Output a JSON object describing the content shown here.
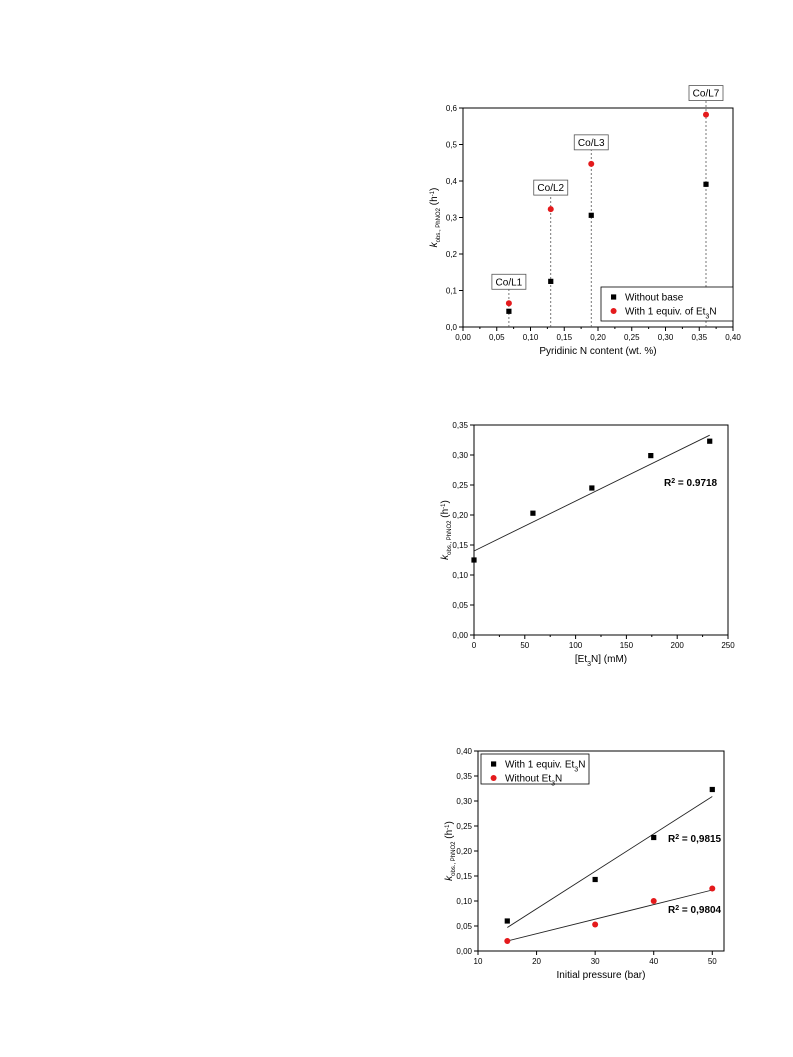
{
  "chart_data": [
    {
      "type": "scatter",
      "xlabel": "Pyridinic N content (wt. %)",
      "ylabel": {
        "k": "k",
        "subscript": "obs., PhNO2",
        "unit_pre": "(h",
        "unit_sup": "-1",
        "unit_post": ")"
      },
      "xlim": [
        0,
        0.4
      ],
      "ylim": [
        0,
        0.6
      ],
      "x_ticks": [
        "0,00",
        "0,05",
        "0,10",
        "0,15",
        "0,20",
        "0,25",
        "0,30",
        "0,35",
        "0,40"
      ],
      "y_ticks": [
        "0,0",
        "0,1",
        "0,2",
        "0,3",
        "0,4",
        "0,5",
        "0,6"
      ],
      "categories": [
        "Co/L1",
        "Co/L2",
        "Co/L3",
        "Co/L7"
      ],
      "x": [
        0.068,
        0.13,
        0.19,
        0.36
      ],
      "series": [
        {
          "name": "Without base",
          "color": "#000000",
          "marker": "square",
          "values": [
            0.043,
            0.125,
            0.306,
            0.391
          ]
        },
        {
          "name": "With 1 equiv. of Et3N",
          "color": "#e41a1c",
          "marker": "circle",
          "values": [
            0.065,
            0.323,
            0.447,
            0.582
          ]
        }
      ],
      "legend": {
        "position": "bottom-right",
        "entries": [
          {
            "text": "Without base"
          },
          {
            "text": "With 1 equiv. of Et",
            "sub": "3",
            "post": "N"
          }
        ]
      },
      "grid": false
    },
    {
      "type": "scatter",
      "xlabel": {
        "pre": "[Et",
        "sub": "3",
        "post": "N] (mM)"
      },
      "ylabel": {
        "k": "k",
        "subscript": "obs., PhNO2",
        "unit_pre": "(h",
        "unit_sup": "-1",
        "unit_post": ")"
      },
      "xlim": [
        0,
        250
      ],
      "ylim": [
        0,
        0.35
      ],
      "x_ticks": [
        "0",
        "50",
        "100",
        "150",
        "200",
        "250"
      ],
      "y_ticks": [
        "0,00",
        "0,05",
        "0,10",
        "0,15",
        "0,20",
        "0,25",
        "0,30",
        "0,35"
      ],
      "series": [
        {
          "color": "#000000",
          "marker": "square",
          "x": [
            0,
            58,
            116,
            174,
            232
          ],
          "values": [
            0.125,
            0.203,
            0.245,
            0.299,
            0.323
          ]
        }
      ],
      "fit_lines": [
        {
          "x": [
            0,
            232
          ],
          "y": [
            0.14,
            0.333
          ]
        }
      ],
      "annotations": [
        {
          "pre": "R",
          "sup": "2",
          "post": " = 0.9718"
        }
      ],
      "grid": false
    },
    {
      "type": "scatter",
      "xlabel": "Initial pressure (bar)",
      "ylabel": {
        "k": "k",
        "subscript": "obs., PhNO2",
        "unit_pre": "(h",
        "unit_sup": "-1",
        "unit_post": ")"
      },
      "xlim": [
        10,
        52
      ],
      "ylim": [
        0,
        0.4
      ],
      "x_ticks": [
        "10",
        "20",
        "30",
        "40",
        "50"
      ],
      "y_ticks": [
        "0,00",
        "0,05",
        "0,10",
        "0,15",
        "0,20",
        "0,25",
        "0,30",
        "0,35",
        "0,40"
      ],
      "series": [
        {
          "name": "With 1 equiv. Et3N",
          "color": "#000000",
          "marker": "square",
          "x": [
            15,
            30,
            40,
            50
          ],
          "values": [
            0.06,
            0.143,
            0.227,
            0.323
          ]
        },
        {
          "name": "Without Et3N",
          "color": "#e41a1c",
          "marker": "circle",
          "x": [
            15,
            30,
            40,
            50
          ],
          "values": [
            0.02,
            0.053,
            0.1,
            0.125
          ]
        }
      ],
      "fit_lines": [
        {
          "x": [
            15,
            50
          ],
          "y": [
            0.047,
            0.309
          ]
        },
        {
          "x": [
            15,
            50
          ],
          "y": [
            0.02,
            0.122
          ]
        }
      ],
      "legend": {
        "position": "top-left",
        "entries": [
          {
            "text": "With 1 equiv. Et",
            "sub": "3",
            "post": "N"
          },
          {
            "text": "Without Et",
            "sub": "3",
            "post": "N"
          }
        ]
      },
      "annotations": [
        {
          "pre": "R",
          "sup": "2",
          "post": " = 0,9815"
        },
        {
          "pre": "R",
          "sup": "2",
          "post": " = 0,9804"
        }
      ],
      "grid": false
    }
  ]
}
